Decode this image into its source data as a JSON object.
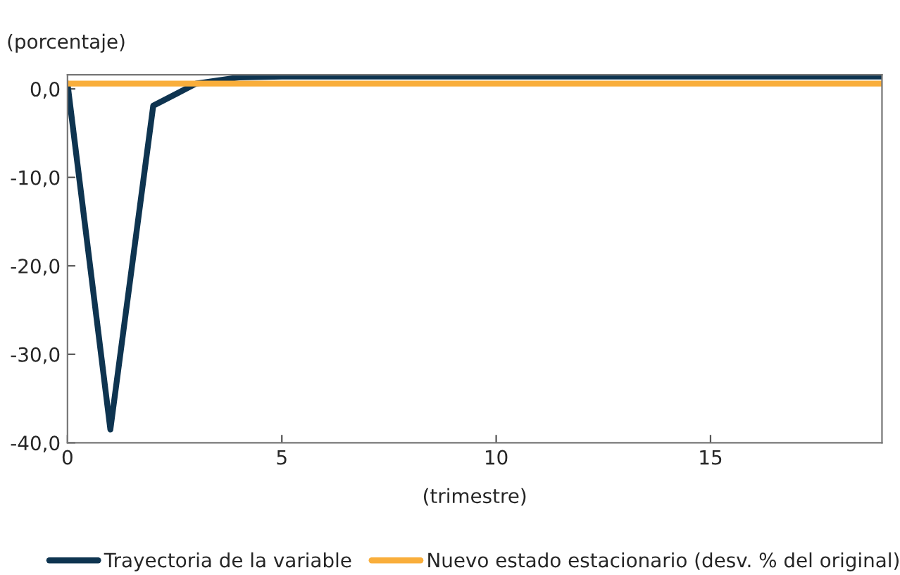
{
  "chart_data": {
    "type": "line",
    "ylabel": "(porcentaje)",
    "xlabel": "(trimestre)",
    "x": [
      0,
      1,
      2,
      3,
      4,
      5,
      6,
      7,
      8,
      9,
      10,
      11,
      12,
      13,
      14,
      15,
      16,
      17,
      18,
      19
    ],
    "series": [
      {
        "name": "Trayectoria de la variable",
        "color": "#0e3450",
        "values": [
          0.6,
          -38.5,
          -1.9,
          0.6,
          1.3,
          1.4,
          1.4,
          1.4,
          1.4,
          1.4,
          1.4,
          1.4,
          1.4,
          1.4,
          1.4,
          1.4,
          1.4,
          1.4,
          1.4,
          1.4
        ]
      },
      {
        "name": "Nuevo estado estacionario (desv. % del original)",
        "color": "#f9ae3b",
        "values": [
          0.6,
          0.6,
          0.6,
          0.6,
          0.6,
          0.6,
          0.6,
          0.6,
          0.6,
          0.6,
          0.6,
          0.6,
          0.6,
          0.6,
          0.6,
          0.6,
          0.6,
          0.6,
          0.6,
          0.6
        ]
      }
    ],
    "xlim": [
      0,
      19
    ],
    "xticks": [
      0,
      5,
      10,
      15
    ],
    "ylim": [
      -40,
      1.6
    ],
    "yticks": [
      {
        "value": -40,
        "label": "-40,0"
      },
      {
        "value": -30,
        "label": "-30,0"
      },
      {
        "value": -20,
        "label": "-20,0"
      },
      {
        "value": -10,
        "label": "-10,0"
      },
      {
        "value": 0,
        "label": "0,0"
      }
    ],
    "grid": false,
    "legend": "bottom",
    "marker": "none",
    "line_style": "solid"
  }
}
